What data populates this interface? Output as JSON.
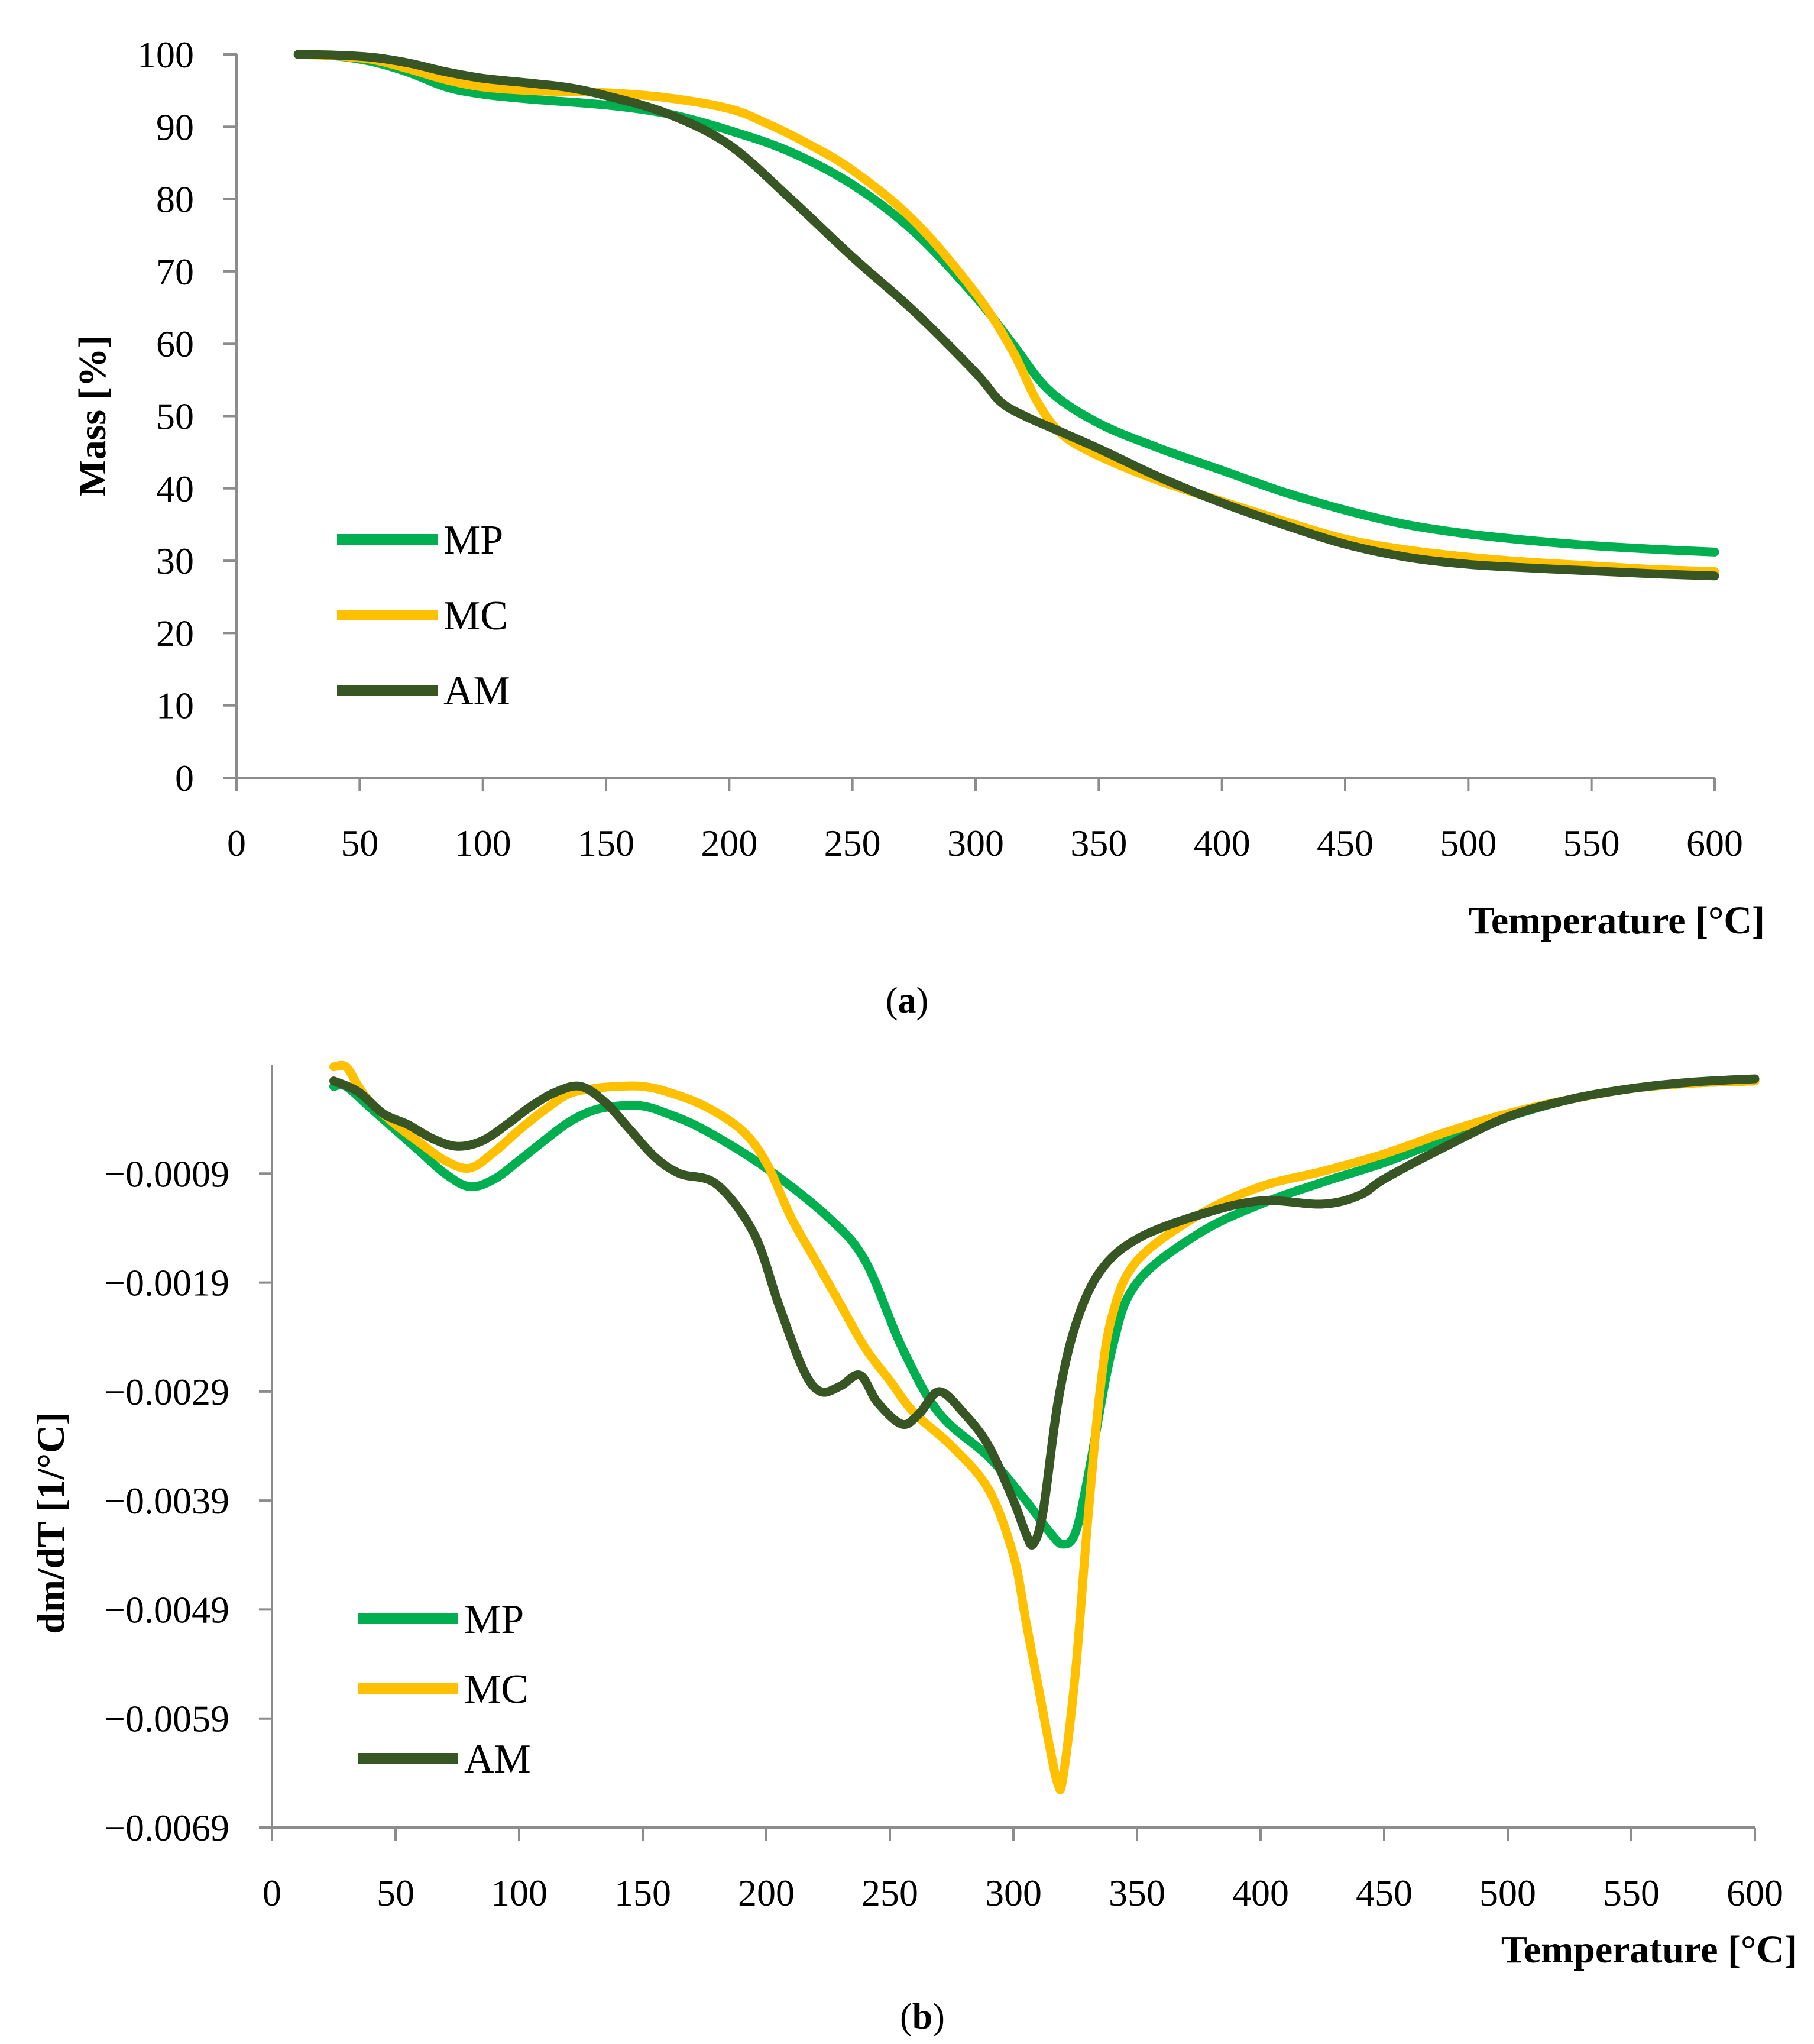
{
  "colors": {
    "MP": "#00b050",
    "MC": "#ffc000",
    "AM": "#375623",
    "axis": "#8c8c8c"
  },
  "chart_data": [
    {
      "type": "line",
      "caption_open": "(",
      "caption_label": "a",
      "caption_close": ")",
      "xlabel": "Temperature [°C]",
      "ylabel": "Mass [%]",
      "xlim": [
        0,
        600
      ],
      "ylim": [
        0,
        100
      ],
      "xticks": [
        0,
        50,
        100,
        150,
        200,
        250,
        300,
        350,
        400,
        450,
        500,
        550,
        600
      ],
      "yticks": [
        0,
        10,
        20,
        30,
        40,
        50,
        60,
        70,
        80,
        90,
        100
      ],
      "xtick_labels": [
        "0",
        "50",
        "100",
        "150",
        "200",
        "250",
        "300",
        "350",
        "400",
        "450",
        "500",
        "550",
        "600"
      ],
      "ytick_labels": [
        "0",
        "10",
        "20",
        "30",
        "40",
        "50",
        "60",
        "70",
        "80",
        "90",
        "100"
      ],
      "grid": false,
      "legend": "left-middle",
      "series": [
        {
          "name": "MP",
          "color": "#00b050",
          "x": [
            25,
            40,
            55,
            70,
            85,
            100,
            120,
            150,
            175,
            200,
            225,
            250,
            275,
            300,
            315,
            330,
            350,
            375,
            400,
            425,
            450,
            475,
            500,
            525,
            550,
            575,
            600
          ],
          "y": [
            100,
            99.8,
            99,
            97.5,
            95.5,
            94.5,
            93.8,
            93,
            91.8,
            89.5,
            86.5,
            82,
            75.5,
            66.5,
            60,
            53.5,
            49,
            45.5,
            42.5,
            39.5,
            37,
            35,
            33.7,
            32.8,
            32.1,
            31.6,
            31.2
          ]
        },
        {
          "name": "MC",
          "color": "#ffc000",
          "x": [
            25,
            40,
            55,
            70,
            85,
            100,
            120,
            150,
            175,
            200,
            215,
            230,
            250,
            275,
            300,
            315,
            325,
            335,
            350,
            375,
            400,
            425,
            450,
            475,
            500,
            525,
            550,
            575,
            600
          ],
          "y": [
            100,
            99.8,
            99.3,
            98,
            96.5,
            95.5,
            95,
            94.7,
            94,
            92.5,
            90.5,
            88,
            84,
            77,
            67,
            59,
            52,
            47.5,
            44.5,
            41,
            38.2,
            35.5,
            33,
            31.5,
            30.5,
            29.8,
            29.3,
            28.8,
            28.5
          ]
        },
        {
          "name": "AM",
          "color": "#375623",
          "x": [
            25,
            40,
            55,
            70,
            85,
            100,
            120,
            135,
            150,
            175,
            200,
            225,
            250,
            275,
            300,
            310,
            320,
            330,
            350,
            375,
            400,
            425,
            450,
            475,
            500,
            525,
            550,
            575,
            600
          ],
          "y": [
            100,
            99.9,
            99.6,
            98.8,
            97.6,
            96.7,
            96,
            95.4,
            94.3,
            91.8,
            87.5,
            80,
            72,
            64.5,
            56,
            52,
            50,
            48.5,
            45.5,
            41.5,
            38,
            35,
            32.3,
            30.5,
            29.5,
            29,
            28.6,
            28.2,
            27.9
          ]
        }
      ]
    },
    {
      "type": "line",
      "caption_open": "(",
      "caption_label": "b",
      "caption_close": ")",
      "xlabel": "Temperature [°C]",
      "ylabel": "dm/dT [1/°C]",
      "xlim": [
        0,
        600
      ],
      "ylim": [
        -0.0069,
        0.0001
      ],
      "xticks": [
        0,
        50,
        100,
        150,
        200,
        250,
        300,
        350,
        400,
        450,
        500,
        550,
        600
      ],
      "yticks": [
        -0.0009,
        -0.0019,
        -0.0029,
        -0.0039,
        -0.0049,
        -0.0059,
        -0.0069
      ],
      "xtick_labels": [
        "0",
        "50",
        "100",
        "150",
        "200",
        "250",
        "300",
        "350",
        "400",
        "450",
        "500",
        "550",
        "600"
      ],
      "ytick_labels": [
        "−0.0009",
        "−0.0019",
        "−0.0029",
        "−0.0039",
        "−0.0049",
        "−0.0059",
        "−0.0069"
      ],
      "grid": false,
      "legend": "left-bottom",
      "series": [
        {
          "name": "MP",
          "color": "#00b050",
          "x": [
            25,
            30,
            40,
            50,
            60,
            70,
            80,
            90,
            100,
            110,
            120,
            130,
            140,
            150,
            160,
            175,
            200,
            225,
            240,
            255,
            270,
            290,
            305,
            315,
            320,
            325,
            330,
            340,
            350,
            375,
            400,
            425,
            450,
            475,
            500,
            525,
            550,
            575,
            600
          ],
          "y": [
            -0.0001,
            -0.0001,
            -0.0003,
            -0.0005,
            -0.0007,
            -0.0009,
            -0.00102,
            -0.00095,
            -0.00078,
            -0.0006,
            -0.00043,
            -0.00032,
            -0.00028,
            -0.00028,
            -0.00035,
            -0.0005,
            -0.00085,
            -0.0013,
            -0.0017,
            -0.0025,
            -0.0031,
            -0.0035,
            -0.0039,
            -0.0042,
            -0.0043,
            -0.0042,
            -0.0037,
            -0.0025,
            -0.0019,
            -0.00145,
            -0.00118,
            -0.00098,
            -0.0008,
            -0.00058,
            -0.00038,
            -0.00022,
            -0.00012,
            -7e-05,
            -5e-05
          ]
        },
        {
          "name": "MC",
          "color": "#ffc000",
          "x": [
            25,
            30,
            35,
            40,
            50,
            60,
            70,
            80,
            90,
            100,
            110,
            120,
            130,
            140,
            150,
            160,
            175,
            190,
            200,
            210,
            220,
            230,
            240,
            250,
            260,
            275,
            290,
            300,
            305,
            310,
            315,
            318,
            320,
            325,
            330,
            335,
            340,
            350,
            375,
            400,
            425,
            450,
            475,
            500,
            525,
            550,
            575,
            600
          ],
          "y": [
            8e-05,
            8e-05,
            -0.0001,
            -0.00025,
            -0.00045,
            -0.00062,
            -0.00078,
            -0.00085,
            -0.0007,
            -0.0005,
            -0.00032,
            -0.00017,
            -0.00012,
            -0.0001,
            -0.0001,
            -0.00015,
            -0.00028,
            -0.0005,
            -0.0008,
            -0.0013,
            -0.0017,
            -0.0021,
            -0.0025,
            -0.0028,
            -0.0031,
            -0.0034,
            -0.0038,
            -0.0044,
            -0.005,
            -0.0056,
            -0.0062,
            -0.0065,
            -0.00645,
            -0.0055,
            -0.0041,
            -0.0029,
            -0.0022,
            -0.0017,
            -0.00128,
            -0.00102,
            -0.00088,
            -0.00072,
            -0.00052,
            -0.00035,
            -0.00022,
            -0.00012,
            -7e-05,
            -5e-05
          ]
        },
        {
          "name": "AM",
          "color": "#375623",
          "x": [
            25,
            35,
            45,
            55,
            65,
            75,
            85,
            95,
            105,
            115,
            125,
            135,
            145,
            155,
            165,
            180,
            195,
            205,
            215,
            222,
            230,
            238,
            245,
            255,
            262,
            270,
            280,
            290,
            300,
            305,
            308,
            312,
            318,
            325,
            335,
            350,
            375,
            400,
            425,
            440,
            450,
            475,
            500,
            525,
            550,
            575,
            600
          ],
          "y": [
            -5e-05,
            -0.00015,
            -0.00035,
            -0.00045,
            -0.00058,
            -0.00065,
            -0.0006,
            -0.00045,
            -0.00028,
            -0.00015,
            -0.0001,
            -0.00025,
            -0.0005,
            -0.00075,
            -0.0009,
            -0.001,
            -0.00145,
            -0.0021,
            -0.0027,
            -0.0029,
            -0.00285,
            -0.00275,
            -0.003,
            -0.0032,
            -0.0031,
            -0.0029,
            -0.0031,
            -0.0034,
            -0.0039,
            -0.0042,
            -0.0043,
            -0.004,
            -0.003,
            -0.0023,
            -0.0018,
            -0.0015,
            -0.00128,
            -0.00115,
            -0.00118,
            -0.0011,
            -0.00095,
            -0.00065,
            -0.00038,
            -0.00022,
            -0.00012,
            -6e-05,
            -3e-05
          ]
        }
      ]
    }
  ]
}
